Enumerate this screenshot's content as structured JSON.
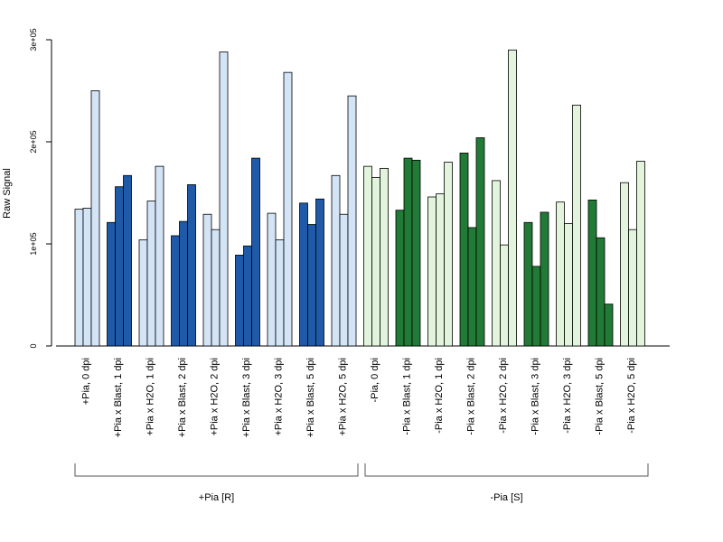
{
  "chart_data": {
    "type": "bar",
    "title": "",
    "xlabel": "",
    "ylabel": "Raw Signal",
    "ylim": [
      0,
      300000
    ],
    "yticks": [
      {
        "value": 0,
        "label": "0"
      },
      {
        "value": 100000,
        "label": "1e+05"
      },
      {
        "value": 200000,
        "label": "2e+05"
      },
      {
        "value": 300000,
        "label": "3e+05"
      }
    ],
    "grid": false,
    "legend": "none",
    "categories": [
      "+Pia, 0 dpi",
      "+Pia x Blast, 1 dpi",
      "+Pia x H2O, 1 dpi",
      "+Pia x Blast, 2 dpi",
      "+Pia x H2O, 2 dpi",
      "+Pia x Blast, 3 dpi",
      "+Pia x H2O, 3 dpi",
      "+Pia x Blast, 5 dpi",
      "+Pia x H2O, 5 dpi",
      "-Pia, 0 dpi",
      "-Pia x Blast, 1 dpi",
      "-Pia x H2O, 1 dpi",
      "-Pia x Blast, 2 dpi",
      "-Pia x H2O, 2 dpi",
      "-Pia x Blast, 3 dpi",
      "-Pia x H2O, 3 dpi",
      "-Pia x Blast, 5 dpi",
      "-Pia x H2O, 5 dpi"
    ],
    "replicates": [
      [
        134000,
        135000,
        250000
      ],
      [
        121000,
        156000,
        167000
      ],
      [
        104000,
        142000,
        176000
      ],
      [
        108000,
        122000,
        158000
      ],
      [
        129000,
        114000,
        288000
      ],
      [
        89000,
        98000,
        184000
      ],
      [
        130000,
        104000,
        268000
      ],
      [
        140000,
        119000,
        144000
      ],
      [
        167000,
        129000,
        245000
      ],
      [
        176000,
        165000,
        174000
      ],
      [
        133000,
        184000,
        182000
      ],
      [
        146000,
        149000,
        180000
      ],
      [
        189000,
        116000,
        204000
      ],
      [
        162000,
        99000,
        290000
      ],
      [
        121000,
        78000,
        131000
      ],
      [
        141000,
        120000,
        236000
      ],
      [
        143000,
        106000,
        41000
      ],
      [
        160000,
        114000,
        181000
      ]
    ],
    "bar_colors": [
      "#d4e4f7",
      "#1f5aa8",
      "#d4e4f7",
      "#1f5aa8",
      "#d4e4f7",
      "#1f5aa8",
      "#d4e4f7",
      "#1f5aa8",
      "#d4e4f7",
      "#e2f5dc",
      "#217a36",
      "#e2f5dc",
      "#217a36",
      "#e2f5dc",
      "#217a36",
      "#e2f5dc",
      "#217a36",
      "#e2f5dc"
    ],
    "groups": [
      {
        "label": "+Pia [R]",
        "from": 0,
        "to": 8
      },
      {
        "label": "-Pia [S]",
        "from": 9,
        "to": 17
      }
    ]
  }
}
